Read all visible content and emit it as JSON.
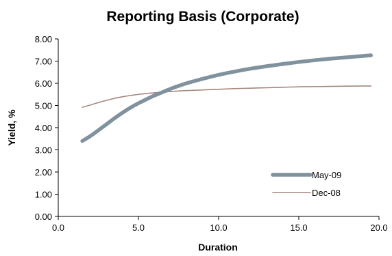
{
  "chart_data": {
    "type": "line",
    "title": "Reporting Basis (Corporate)",
    "xlabel": "Duration",
    "ylabel": "Yield, %",
    "xlim": [
      0,
      20
    ],
    "ylim": [
      0,
      8
    ],
    "x_ticks": [
      "0.0",
      "5.0",
      "10.0",
      "15.0",
      "20.0"
    ],
    "y_ticks": [
      "0.00",
      "1.00",
      "2.00",
      "3.00",
      "4.00",
      "5.00",
      "6.00",
      "7.00",
      "8.00"
    ],
    "grid": false,
    "legend_position": "bottom-right",
    "series": [
      {
        "name": "May-09",
        "color": "#7f929e",
        "points": [
          [
            1.5,
            3.4
          ],
          [
            2.0,
            3.62
          ],
          [
            2.5,
            3.88
          ],
          [
            3.0,
            4.15
          ],
          [
            3.5,
            4.42
          ],
          [
            4.0,
            4.67
          ],
          [
            4.5,
            4.9
          ],
          [
            5.0,
            5.1
          ],
          [
            5.5,
            5.28
          ],
          [
            6.0,
            5.45
          ],
          [
            6.5,
            5.6
          ],
          [
            7.0,
            5.75
          ],
          [
            7.5,
            5.88
          ],
          [
            8.0,
            6.0
          ],
          [
            9.0,
            6.2
          ],
          [
            10.0,
            6.38
          ],
          [
            11.0,
            6.53
          ],
          [
            12.0,
            6.66
          ],
          [
            13.0,
            6.77
          ],
          [
            14.0,
            6.87
          ],
          [
            15.0,
            6.96
          ],
          [
            16.0,
            7.04
          ],
          [
            17.0,
            7.11
          ],
          [
            18.0,
            7.17
          ],
          [
            19.0,
            7.23
          ],
          [
            19.5,
            7.26
          ]
        ]
      },
      {
        "name": "Dec-08",
        "color": "#a3877b",
        "points": [
          [
            1.5,
            4.92
          ],
          [
            2.0,
            5.02
          ],
          [
            2.5,
            5.13
          ],
          [
            3.0,
            5.23
          ],
          [
            3.5,
            5.32
          ],
          [
            4.0,
            5.39
          ],
          [
            4.5,
            5.45
          ],
          [
            5.0,
            5.5
          ],
          [
            6.0,
            5.57
          ],
          [
            7.0,
            5.63
          ],
          [
            8.0,
            5.67
          ],
          [
            9.0,
            5.7
          ],
          [
            10.0,
            5.73
          ],
          [
            11.0,
            5.76
          ],
          [
            12.0,
            5.78
          ],
          [
            13.0,
            5.8
          ],
          [
            14.0,
            5.82
          ],
          [
            15.0,
            5.84
          ],
          [
            16.0,
            5.85
          ],
          [
            17.0,
            5.86
          ],
          [
            18.0,
            5.87
          ],
          [
            19.5,
            5.88
          ]
        ]
      }
    ]
  }
}
